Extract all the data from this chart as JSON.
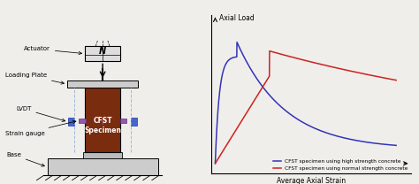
{
  "title_right": "Axial Load",
  "xlabel": "Average Axial Strain",
  "legend_blue": "CFST specimen using high strength concrete",
  "legend_red": "CFST specimen using normal strength concrete",
  "blue_color": "#3333bb",
  "red_color": "#cc2222",
  "bg_color": "#f0eeea",
  "actuator_label": "Actuator",
  "loading_plate_label": "Loading Plate",
  "lvdt_label": "LVDT",
  "strain_gauge_label": "Strain gauge",
  "base_label": "Base",
  "cfst_label": "CFST\nSpecimen",
  "N_label": "N"
}
